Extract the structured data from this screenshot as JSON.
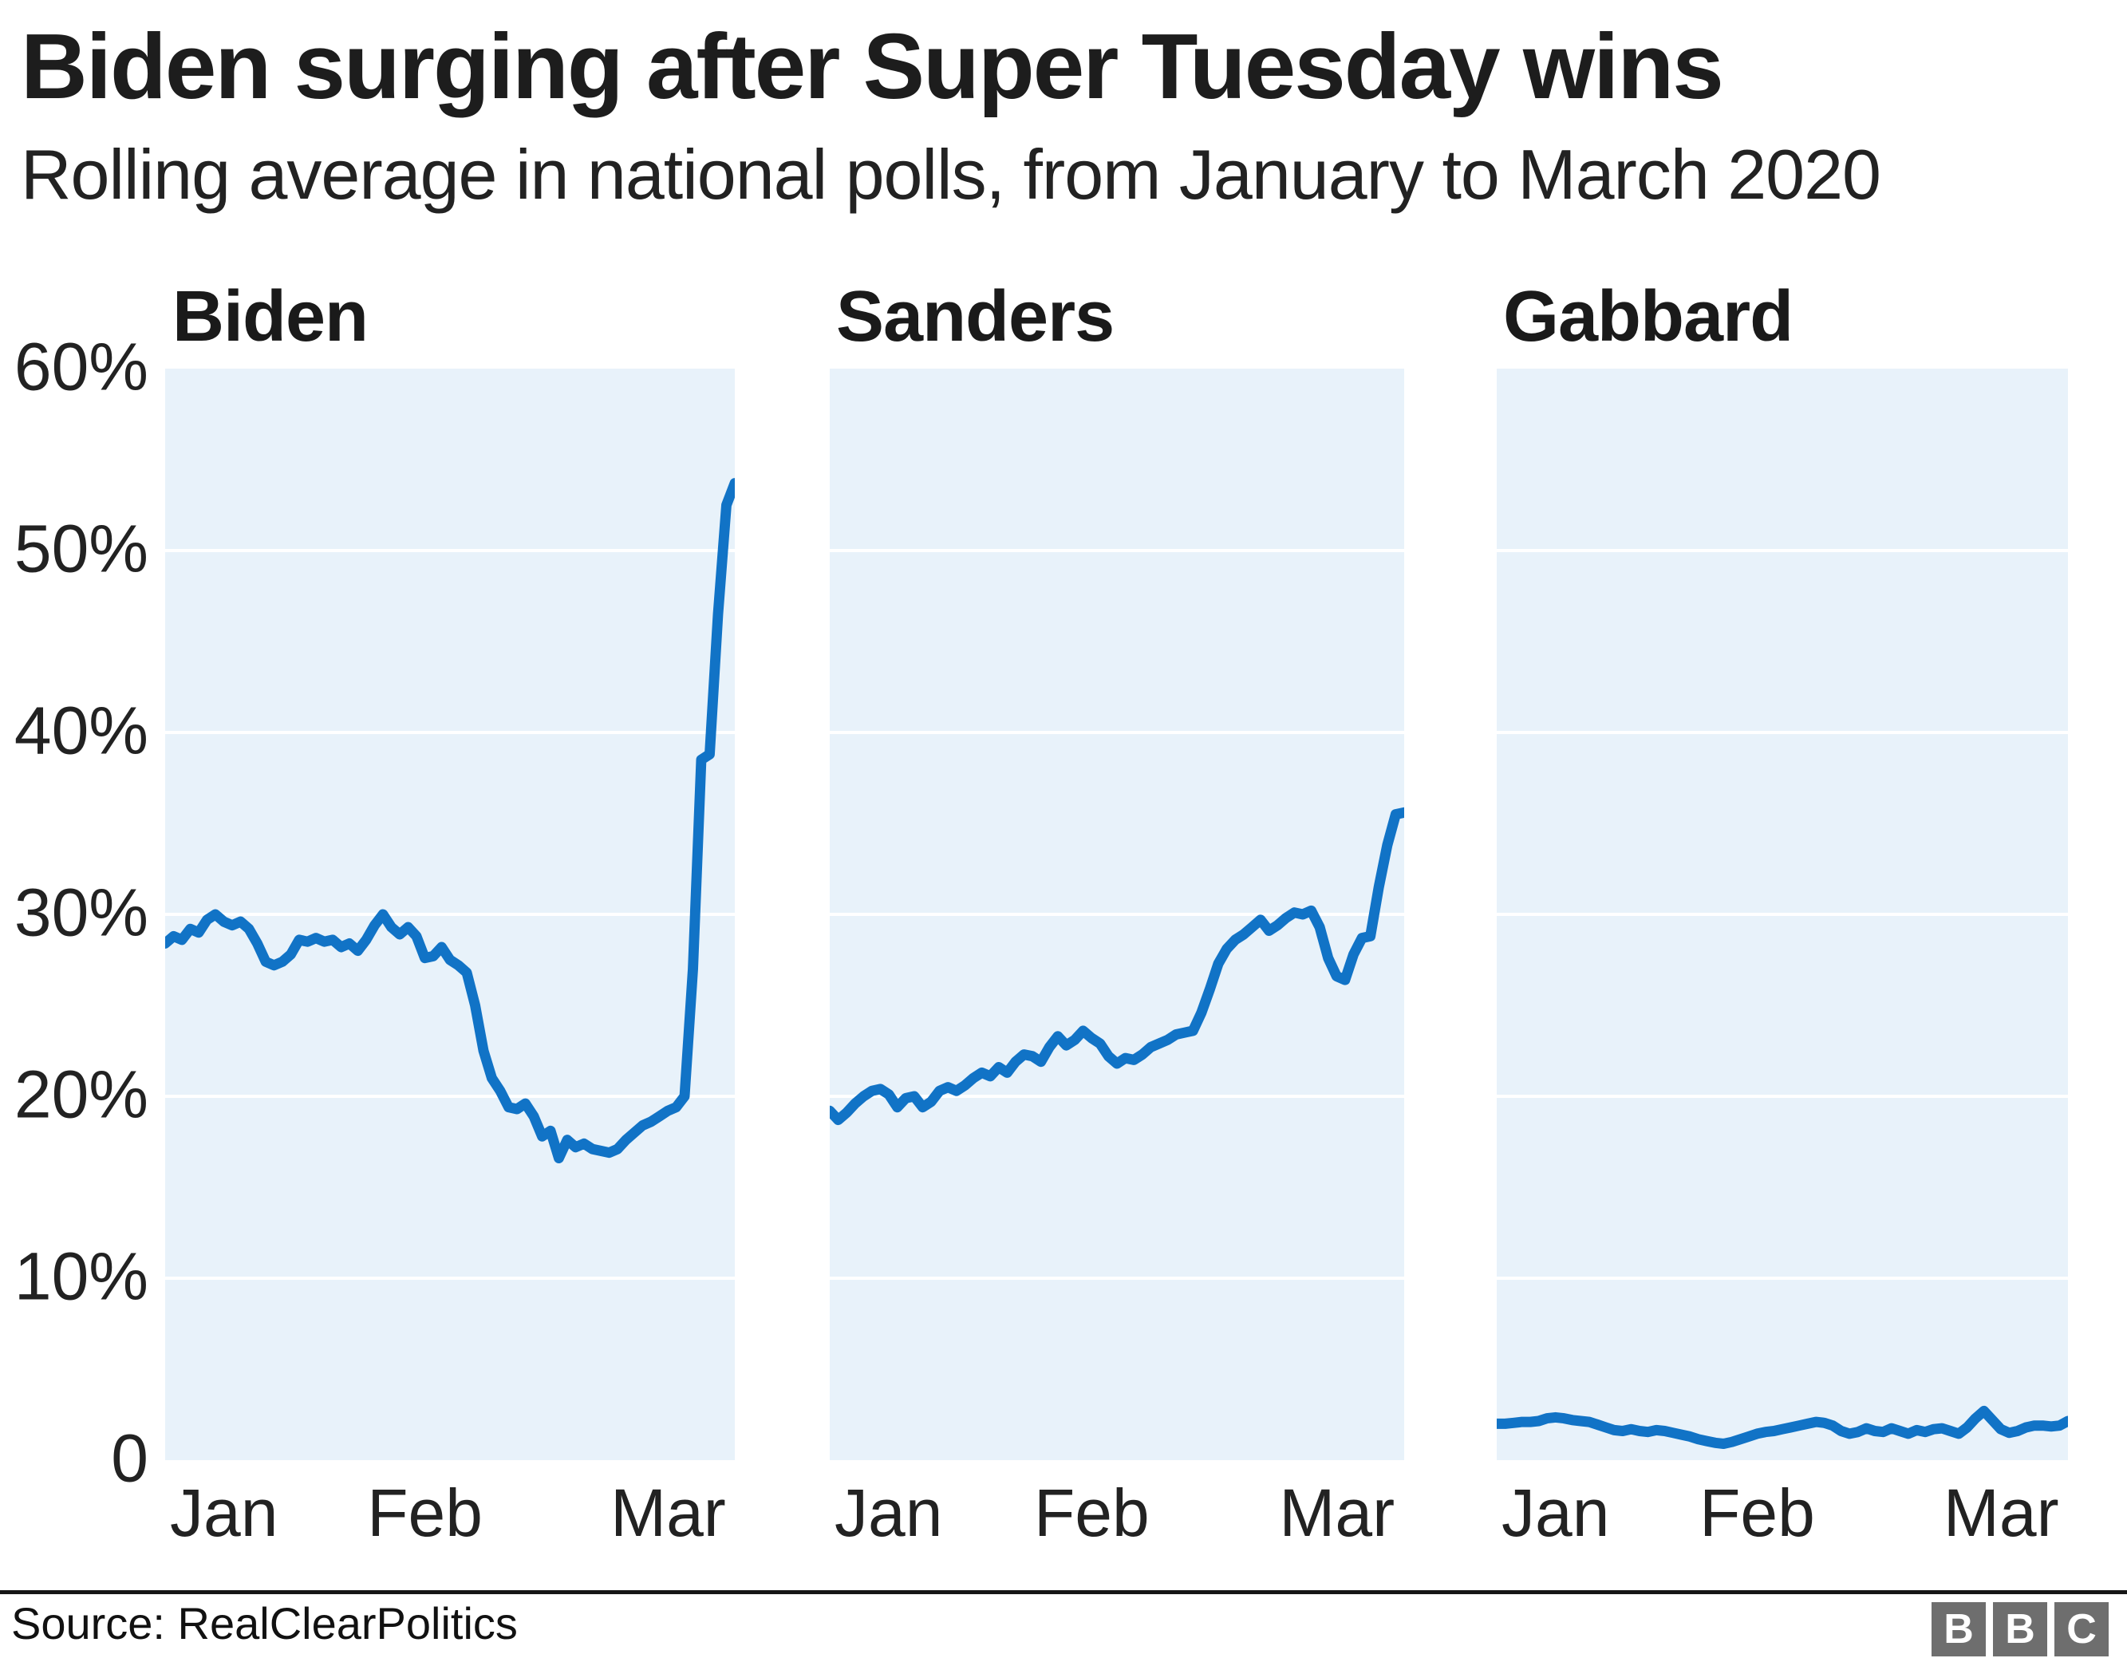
{
  "header": {
    "title": "Biden surging after Super Tuesday wins",
    "subtitle": "Rolling average in national polls, from January to March 2020"
  },
  "axis": {
    "y_ticks": [
      "60%",
      "50%",
      "40%",
      "30%",
      "20%",
      "10%",
      "0"
    ],
    "x_ticks": [
      "Jan",
      "Feb",
      "Mar"
    ]
  },
  "chart_data": [
    {
      "type": "line",
      "title": "Biden",
      "xlabel": "",
      "ylabel": "",
      "unit": "%",
      "ylim": [
        0,
        60
      ],
      "x_ticks": [
        "Jan",
        "Feb",
        "Mar"
      ],
      "x_description": "Daily values, 1 January to 9 March 2020",
      "grid": "horizontal-white",
      "values": [
        28.4,
        28.8,
        28.6,
        29.2,
        29.0,
        29.7,
        30.0,
        29.6,
        29.4,
        29.6,
        29.2,
        28.4,
        27.4,
        27.2,
        27.4,
        27.8,
        28.6,
        28.5,
        28.7,
        28.5,
        28.6,
        28.2,
        28.4,
        28.0,
        28.6,
        29.4,
        30.0,
        29.3,
        28.9,
        29.3,
        28.8,
        27.6,
        27.7,
        28.2,
        27.5,
        27.2,
        26.8,
        25.0,
        22.5,
        21.0,
        20.3,
        19.4,
        19.3,
        19.6,
        18.9,
        17.8,
        18.1,
        16.6,
        17.6,
        17.2,
        17.4,
        17.1,
        17.0,
        16.9,
        17.1,
        17.6,
        18.0,
        18.4,
        18.6,
        18.9,
        19.2,
        19.4,
        20.0,
        27.0,
        38.5,
        38.8,
        46.5,
        52.5,
        53.7
      ]
    },
    {
      "type": "line",
      "title": "Sanders",
      "xlabel": "",
      "ylabel": "",
      "unit": "%",
      "ylim": [
        0,
        60
      ],
      "x_ticks": [
        "Jan",
        "Feb",
        "Mar"
      ],
      "x_description": "Daily values, 1 January to 9 March 2020",
      "grid": "horizontal-white",
      "values": [
        19.2,
        18.7,
        19.1,
        19.6,
        20.0,
        20.3,
        20.4,
        20.1,
        19.4,
        19.9,
        20.0,
        19.4,
        19.7,
        20.3,
        20.5,
        20.3,
        20.6,
        21.0,
        21.3,
        21.1,
        21.6,
        21.3,
        21.9,
        22.3,
        22.2,
        21.9,
        22.7,
        23.3,
        22.8,
        23.1,
        23.6,
        23.2,
        22.9,
        22.2,
        21.8,
        22.1,
        22.0,
        22.3,
        22.7,
        22.9,
        23.1,
        23.4,
        23.5,
        23.6,
        24.6,
        25.9,
        27.3,
        28.1,
        28.6,
        28.9,
        29.3,
        29.7,
        29.1,
        29.4,
        29.8,
        30.1,
        30.0,
        30.2,
        29.3,
        27.6,
        26.6,
        26.4,
        27.8,
        28.7,
        28.8,
        31.5,
        33.8,
        35.5,
        35.6
      ]
    },
    {
      "type": "line",
      "title": "Gabbard",
      "xlabel": "",
      "ylabel": "",
      "unit": "%",
      "ylim": [
        0,
        60
      ],
      "x_ticks": [
        "Jan",
        "Feb",
        "Mar"
      ],
      "x_description": "Daily values, 1 January to 9 March 2020",
      "grid": "horizontal-white",
      "values": [
        2.0,
        2.0,
        2.05,
        2.1,
        2.1,
        2.15,
        2.3,
        2.35,
        2.3,
        2.2,
        2.15,
        2.1,
        1.95,
        1.8,
        1.65,
        1.6,
        1.7,
        1.6,
        1.55,
        1.65,
        1.6,
        1.5,
        1.4,
        1.3,
        1.15,
        1.05,
        0.95,
        0.9,
        1.0,
        1.15,
        1.3,
        1.45,
        1.55,
        1.6,
        1.7,
        1.8,
        1.9,
        2.0,
        2.1,
        2.05,
        1.9,
        1.6,
        1.45,
        1.55,
        1.75,
        1.6,
        1.55,
        1.75,
        1.6,
        1.45,
        1.65,
        1.55,
        1.7,
        1.75,
        1.6,
        1.45,
        1.8,
        2.3,
        2.7,
        2.2,
        1.7,
        1.5,
        1.6,
        1.8,
        1.9,
        1.9,
        1.85,
        1.9,
        2.15
      ]
    }
  ],
  "footer": {
    "source": "Source: RealClearPolitics",
    "logo_letters": [
      "B",
      "B",
      "C"
    ]
  },
  "colors": {
    "line": "#1173c6",
    "plot_bg": "#e8f2fa",
    "grid": "#ffffff",
    "logo_bg": "#6e6e6e",
    "text": "#1a1a1a"
  }
}
